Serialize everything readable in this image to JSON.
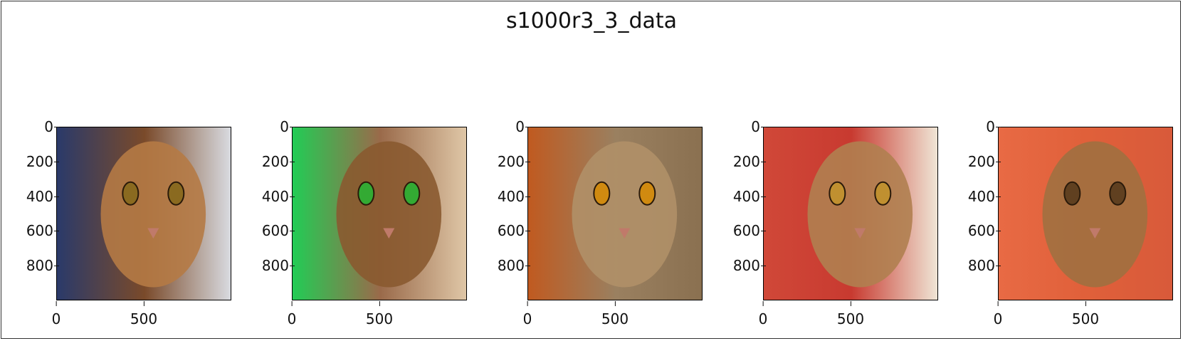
{
  "chart_data": {
    "type": "image_grid",
    "title": "s1000r3_3_data",
    "panels": [
      {
        "image": "abyssinian-cat-face-closeup",
        "colors": {
          "bg": "#7a4a2a",
          "left": "#2a3a6a",
          "right": "#dadde3",
          "fur": "#b57a45",
          "eye": "#8a6a20"
        },
        "xlim": [
          0,
          1000
        ],
        "ylim": [
          1000,
          0
        ],
        "xticks": [
          0,
          500
        ],
        "yticks": [
          0,
          200,
          400,
          600,
          800
        ]
      },
      {
        "image": "abyssinian-cat-green-background-watermark",
        "colors": {
          "bg": "#9a6a4a",
          "left": "#22cc55",
          "right": "#e0c8a8",
          "fur": "#8a5a30",
          "eye": "#33aa33"
        },
        "xlim": [
          0,
          1000
        ],
        "ylim": [
          1000,
          0
        ],
        "xticks": [
          0,
          500
        ],
        "yticks": [
          0,
          200,
          400,
          600,
          800
        ]
      },
      {
        "image": "tabby-cat-face-staring",
        "colors": {
          "bg": "#9a8060",
          "left": "#c05a20",
          "right": "#8a7050",
          "fur": "#b09068",
          "eye": "#d08a10"
        },
        "xlim": [
          0,
          1000
        ],
        "ylim": [
          1000,
          0
        ],
        "xticks": [
          0,
          500
        ],
        "yticks": [
          0,
          200,
          400,
          600,
          800
        ]
      },
      {
        "image": "abyssinian-cat-on-red-blanket",
        "colors": {
          "bg": "#c83a30",
          "left": "#d04838",
          "right": "#f0e8d8",
          "fur": "#b08050",
          "eye": "#c09030"
        },
        "xlim": [
          0,
          1000
        ],
        "ylim": [
          1000,
          0
        ],
        "xticks": [
          0,
          500
        ],
        "yticks": [
          0,
          200,
          400,
          600,
          800
        ]
      },
      {
        "image": "abyssinian-cats-lying-on-orange-cloth",
        "colors": {
          "bg": "#e0603a",
          "left": "#e86a44",
          "right": "#d85a3a",
          "fur": "#a07040",
          "eye": "#604020"
        },
        "xlim": [
          0,
          1000
        ],
        "ylim": [
          1000,
          0
        ],
        "xticks": [
          0,
          500
        ],
        "yticks": [
          0,
          200,
          400,
          600,
          800
        ]
      }
    ]
  }
}
